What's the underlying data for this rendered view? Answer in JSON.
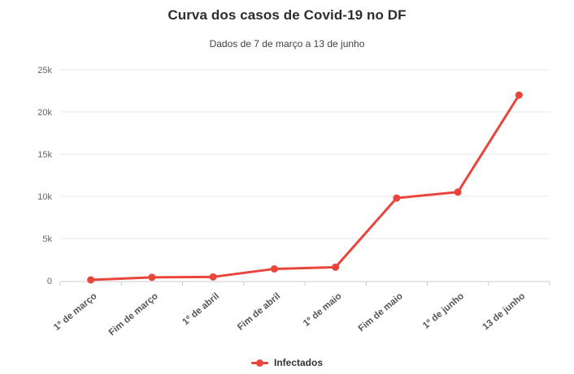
{
  "chart_data": {
    "type": "line",
    "title": "Curva dos casos de Covid-19 no DF",
    "subtitle": "Dados de 7 de março a 13 de junho",
    "categories": [
      "1º de março",
      "Fim de março",
      "1º de abril",
      "Fim de abril",
      "1º de maio",
      "Fim de maio",
      "1º de junho",
      "13 de junho"
    ],
    "series": [
      {
        "name": "Infectados",
        "color": "#e8463c",
        "values": [
          100,
          400,
          450,
          1400,
          1600,
          9800,
          10500,
          22000
        ]
      }
    ],
    "ylim": [
      0,
      25000
    ],
    "yticks": [
      {
        "value": 0,
        "label": "0"
      },
      {
        "value": 5000,
        "label": "5k"
      },
      {
        "value": 10000,
        "label": "10k"
      },
      {
        "value": 15000,
        "label": "15k"
      },
      {
        "value": 20000,
        "label": "20k"
      },
      {
        "value": 25000,
        "label": "25k"
      }
    ],
    "grid": true,
    "legend_position": "bottom",
    "colors": {
      "grid": "#e8e8e8",
      "axis": "#cccccc",
      "y_label": "#666666",
      "x_label": "#555555"
    }
  }
}
